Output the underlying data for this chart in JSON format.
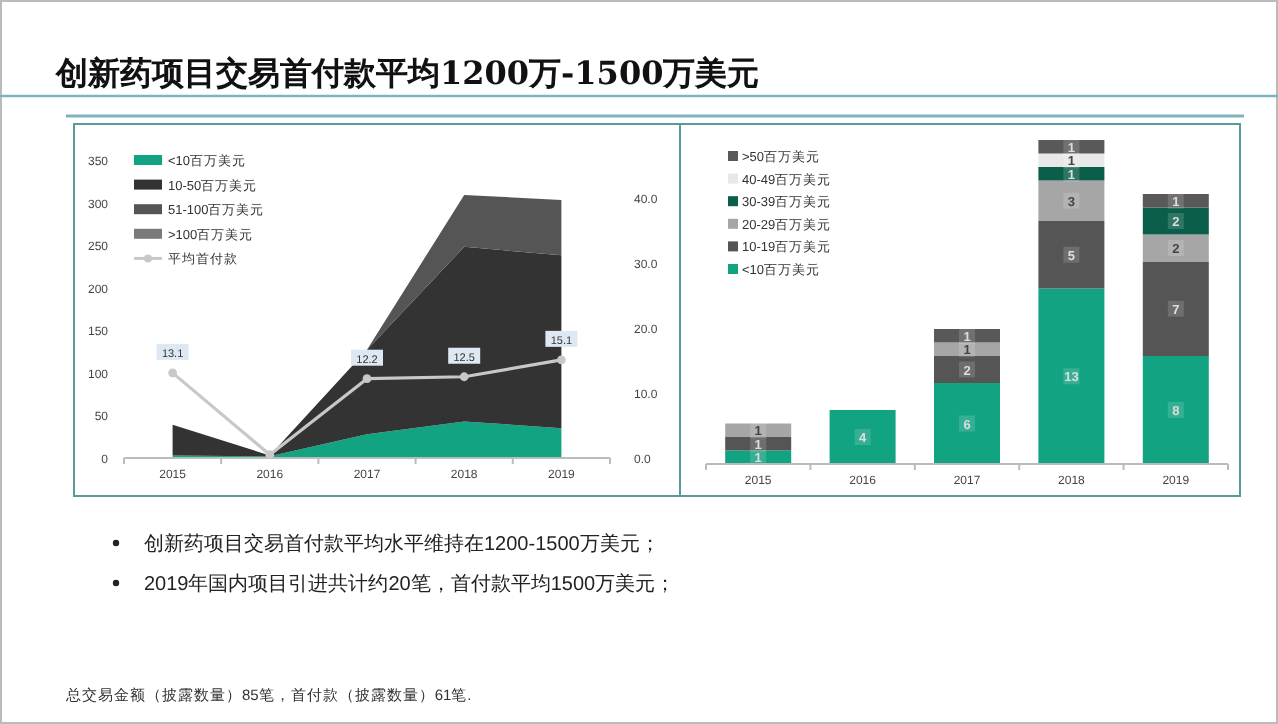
{
  "chart_data": [
    {
      "type": "area",
      "stacked": true,
      "title": "创新药项目交易首付款平均1200万-1500万美元",
      "categories": [
        "2015",
        "2016",
        "2017",
        "2018",
        "2019"
      ],
      "ylim": [
        0,
        350
      ],
      "yticks": [
        0,
        50,
        100,
        150,
        200,
        250,
        300,
        350
      ],
      "y2lim": [
        0,
        40
      ],
      "y2ticks": [
        {
          "value": 0,
          "label": "0.0"
        },
        {
          "value": 10,
          "label": "10.0"
        },
        {
          "value": 20,
          "label": "20.0"
        },
        {
          "value": 30,
          "label": "30.0"
        },
        {
          "value": 40,
          "label": "40.0"
        }
      ],
      "legend": "top left",
      "series": [
        {
          "name": "<10百万美元",
          "color": "#12a382",
          "values": [
            3,
            2,
            28,
            43,
            35
          ]
        },
        {
          "name": "10-50百万美元",
          "color": "#333333",
          "values": [
            36,
            1,
            99,
            205,
            203
          ]
        },
        {
          "name": "51-100百万美元",
          "color": "#555555",
          "values": [
            0,
            0,
            0,
            61,
            65
          ]
        },
        {
          "name": ">100百万美元",
          "color": "#7a7a7a",
          "values": [
            null,
            null,
            null,
            null,
            null
          ]
        },
        {
          "name": "平均首付款",
          "type": "line",
          "axis": "y2",
          "marker": "circle",
          "color": "#c8c8c8",
          "values": [
            13.1,
            0.5,
            12.2,
            12.5,
            15.1
          ],
          "value_labels": [
            "13.1",
            null,
            "12.2",
            "12.5",
            "15.1"
          ]
        }
      ]
    },
    {
      "type": "bar",
      "stacked": true,
      "categories": [
        "2015",
        "2016",
        "2017",
        "2018",
        "2019"
      ],
      "data_labels": true,
      "legend": "top left",
      "series": [
        {
          "name": "<10百万美元",
          "color": "#12a382",
          "values": [
            1,
            4,
            6,
            13,
            8
          ]
        },
        {
          "name": "10-19百万美元",
          "color": "#555555",
          "values": [
            1,
            null,
            2,
            5,
            7
          ]
        },
        {
          "name": "20-29百万美元",
          "color": "#a6a6a6",
          "values": [
            1,
            null,
            1,
            3,
            2
          ]
        },
        {
          "name": "30-39百万美元",
          "color": "#0b5e4a",
          "values": [
            null,
            null,
            null,
            1,
            2
          ]
        },
        {
          "name": "40-49百万美元",
          "color": "#e8e8e8",
          "values": [
            null,
            null,
            null,
            1,
            null
          ]
        },
        {
          "name": ">50百万美元",
          "color": "#595959",
          "values": [
            null,
            null,
            1,
            1,
            1
          ]
        }
      ],
      "annotations": [
        "创新药项目交易首付款平均水平维持在1200-1500万美元；",
        "2019年国内项目引进共计约20笔，首付款平均1500万美元；",
        "总交易金额（披露数量）85笔，首付款（披露数量）61笔."
      ]
    }
  ]
}
